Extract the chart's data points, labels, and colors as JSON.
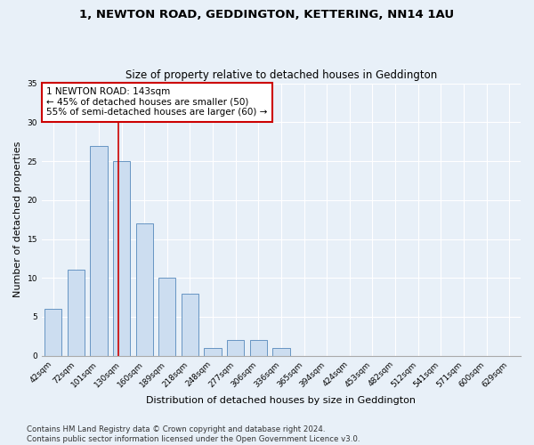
{
  "title": "1, NEWTON ROAD, GEDDINGTON, KETTERING, NN14 1AU",
  "subtitle": "Size of property relative to detached houses in Geddington",
  "xlabel": "Distribution of detached houses by size in Geddington",
  "ylabel": "Number of detached properties",
  "categories": [
    "42sqm",
    "72sqm",
    "101sqm",
    "130sqm",
    "160sqm",
    "189sqm",
    "218sqm",
    "248sqm",
    "277sqm",
    "306sqm",
    "336sqm",
    "365sqm",
    "394sqm",
    "424sqm",
    "453sqm",
    "482sqm",
    "512sqm",
    "541sqm",
    "571sqm",
    "600sqm",
    "629sqm"
  ],
  "values": [
    6,
    11,
    27,
    25,
    17,
    10,
    8,
    1,
    2,
    2,
    1,
    0,
    0,
    0,
    0,
    0,
    0,
    0,
    0,
    0,
    0
  ],
  "bar_color": "#ccddf0",
  "bar_edge_color": "#5588bb",
  "background_color": "#e8f0f8",
  "grid_color": "#ffffff",
  "annotation_box_text": "1 NEWTON ROAD: 143sqm\n← 45% of detached houses are smaller (50)\n55% of semi-detached houses are larger (60) →",
  "annotation_box_color": "#ffffff",
  "annotation_box_edge_color": "#cc0000",
  "vline_color": "#cc0000",
  "vline_xindex": 3,
  "ylim": [
    0,
    35
  ],
  "yticks": [
    0,
    5,
    10,
    15,
    20,
    25,
    30,
    35
  ],
  "footnote": "Contains HM Land Registry data © Crown copyright and database right 2024.\nContains public sector information licensed under the Open Government Licence v3.0.",
  "title_fontsize": 9.5,
  "subtitle_fontsize": 8.5,
  "xlabel_fontsize": 8,
  "ylabel_fontsize": 8,
  "tick_fontsize": 6.5,
  "annot_fontsize": 7.5,
  "footnote_fontsize": 6.2
}
